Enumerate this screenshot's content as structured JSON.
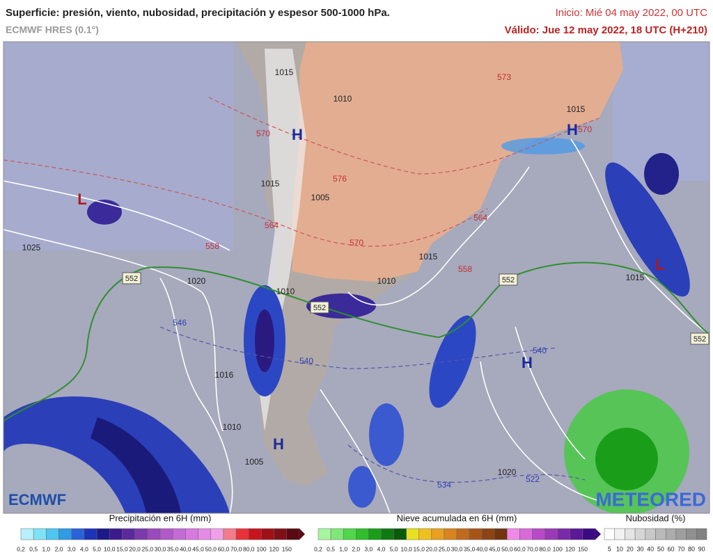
{
  "header": {
    "title": "Superficie: presión, viento, nubosidad, precipitación y espesor 500-1000 hPa.",
    "model": "ECMWF HRES (0.1°)",
    "init": "Inicio: Mié 04 may 2022, 00 UTC",
    "valid": "Válido: Jue 12 may 2022, 18 UTC (H+210)"
  },
  "map": {
    "pressure_centers": [
      "H",
      "H",
      "H",
      "H",
      "L",
      "L"
    ],
    "isobar_labels": [
      "1015",
      "1010",
      "1015",
      "1005",
      "1025",
      "1020",
      "1015",
      "1010",
      "1015",
      "1015",
      "1016",
      "1010",
      "1005",
      "1020",
      "1010"
    ],
    "thickness_labels": [
      "573",
      "570",
      "576",
      "564",
      "558",
      "570",
      "564",
      "558",
      "546",
      "540",
      "540",
      "534",
      "522",
      "570"
    ],
    "thickness_line_labels": [
      "552",
      "552",
      "552",
      "552"
    ]
  },
  "logos": {
    "left": "ECMWF",
    "right": "METEORED"
  },
  "legends": [
    {
      "title": "Precipitación en 6H (mm)",
      "ticks": [
        "0,2",
        "0,5",
        "1,0",
        "2,0",
        "3,0",
        "4,0",
        "5,0",
        "10,0",
        "15,0",
        "20,0",
        "25,0",
        "30,0",
        "35,0",
        "40,0",
        "45,0",
        "50,0",
        "60,0",
        "70,0",
        "80,0",
        "100",
        "120",
        "150"
      ],
      "colors": [
        "#b6f0fb",
        "#7fe3f7",
        "#4fc6f0",
        "#2f9be6",
        "#2a62d9",
        "#1d33b8",
        "#1a1a8a",
        "#3b1a8c",
        "#5a2a9c",
        "#7a3aac",
        "#9a4abc",
        "#b05ac8",
        "#c46ad4",
        "#d77ae0",
        "#e58ae6",
        "#f0a0e8",
        "#f47c8a",
        "#e8323c",
        "#c8141e",
        "#a01018",
        "#801018",
        "#5a0a10"
      ]
    },
    {
      "title": "Nieve acumulada en 6H (mm)",
      "ticks": [
        "0,2",
        "0,5",
        "1,0",
        "2,0",
        "3,0",
        "4,0",
        "5,0",
        "10,0",
        "15,0",
        "20,0",
        "25,0",
        "30,0",
        "35,0",
        "40,0",
        "45,0",
        "50,0",
        "60,0",
        "70,0",
        "80,0",
        "100",
        "120",
        "150"
      ],
      "colors": [
        "#a8f5a0",
        "#7fe878",
        "#52d64c",
        "#2fbe2c",
        "#1a9e1a",
        "#0f7a12",
        "#0a5a0c",
        "#e8e020",
        "#f0c020",
        "#e8a020",
        "#d88420",
        "#c06a1c",
        "#a85418",
        "#8c4414",
        "#703410",
        "#f08ae8",
        "#d86ad8",
        "#b84ac8",
        "#9a3ab8",
        "#7a2aa8",
        "#5a1a98",
        "#3a0a80"
      ]
    },
    {
      "title": "Nubosidad (%)",
      "ticks": [
        "5",
        "10",
        "20",
        "30",
        "40",
        "50",
        "60",
        "70",
        "80",
        "90"
      ],
      "colors": [
        "#ffffff",
        "#f2f2f2",
        "#e4e4e4",
        "#d6d6d6",
        "#c8c8c8",
        "#bababa",
        "#acacac",
        "#9e9e9e",
        "#909090",
        "#828282"
      ]
    }
  ]
}
